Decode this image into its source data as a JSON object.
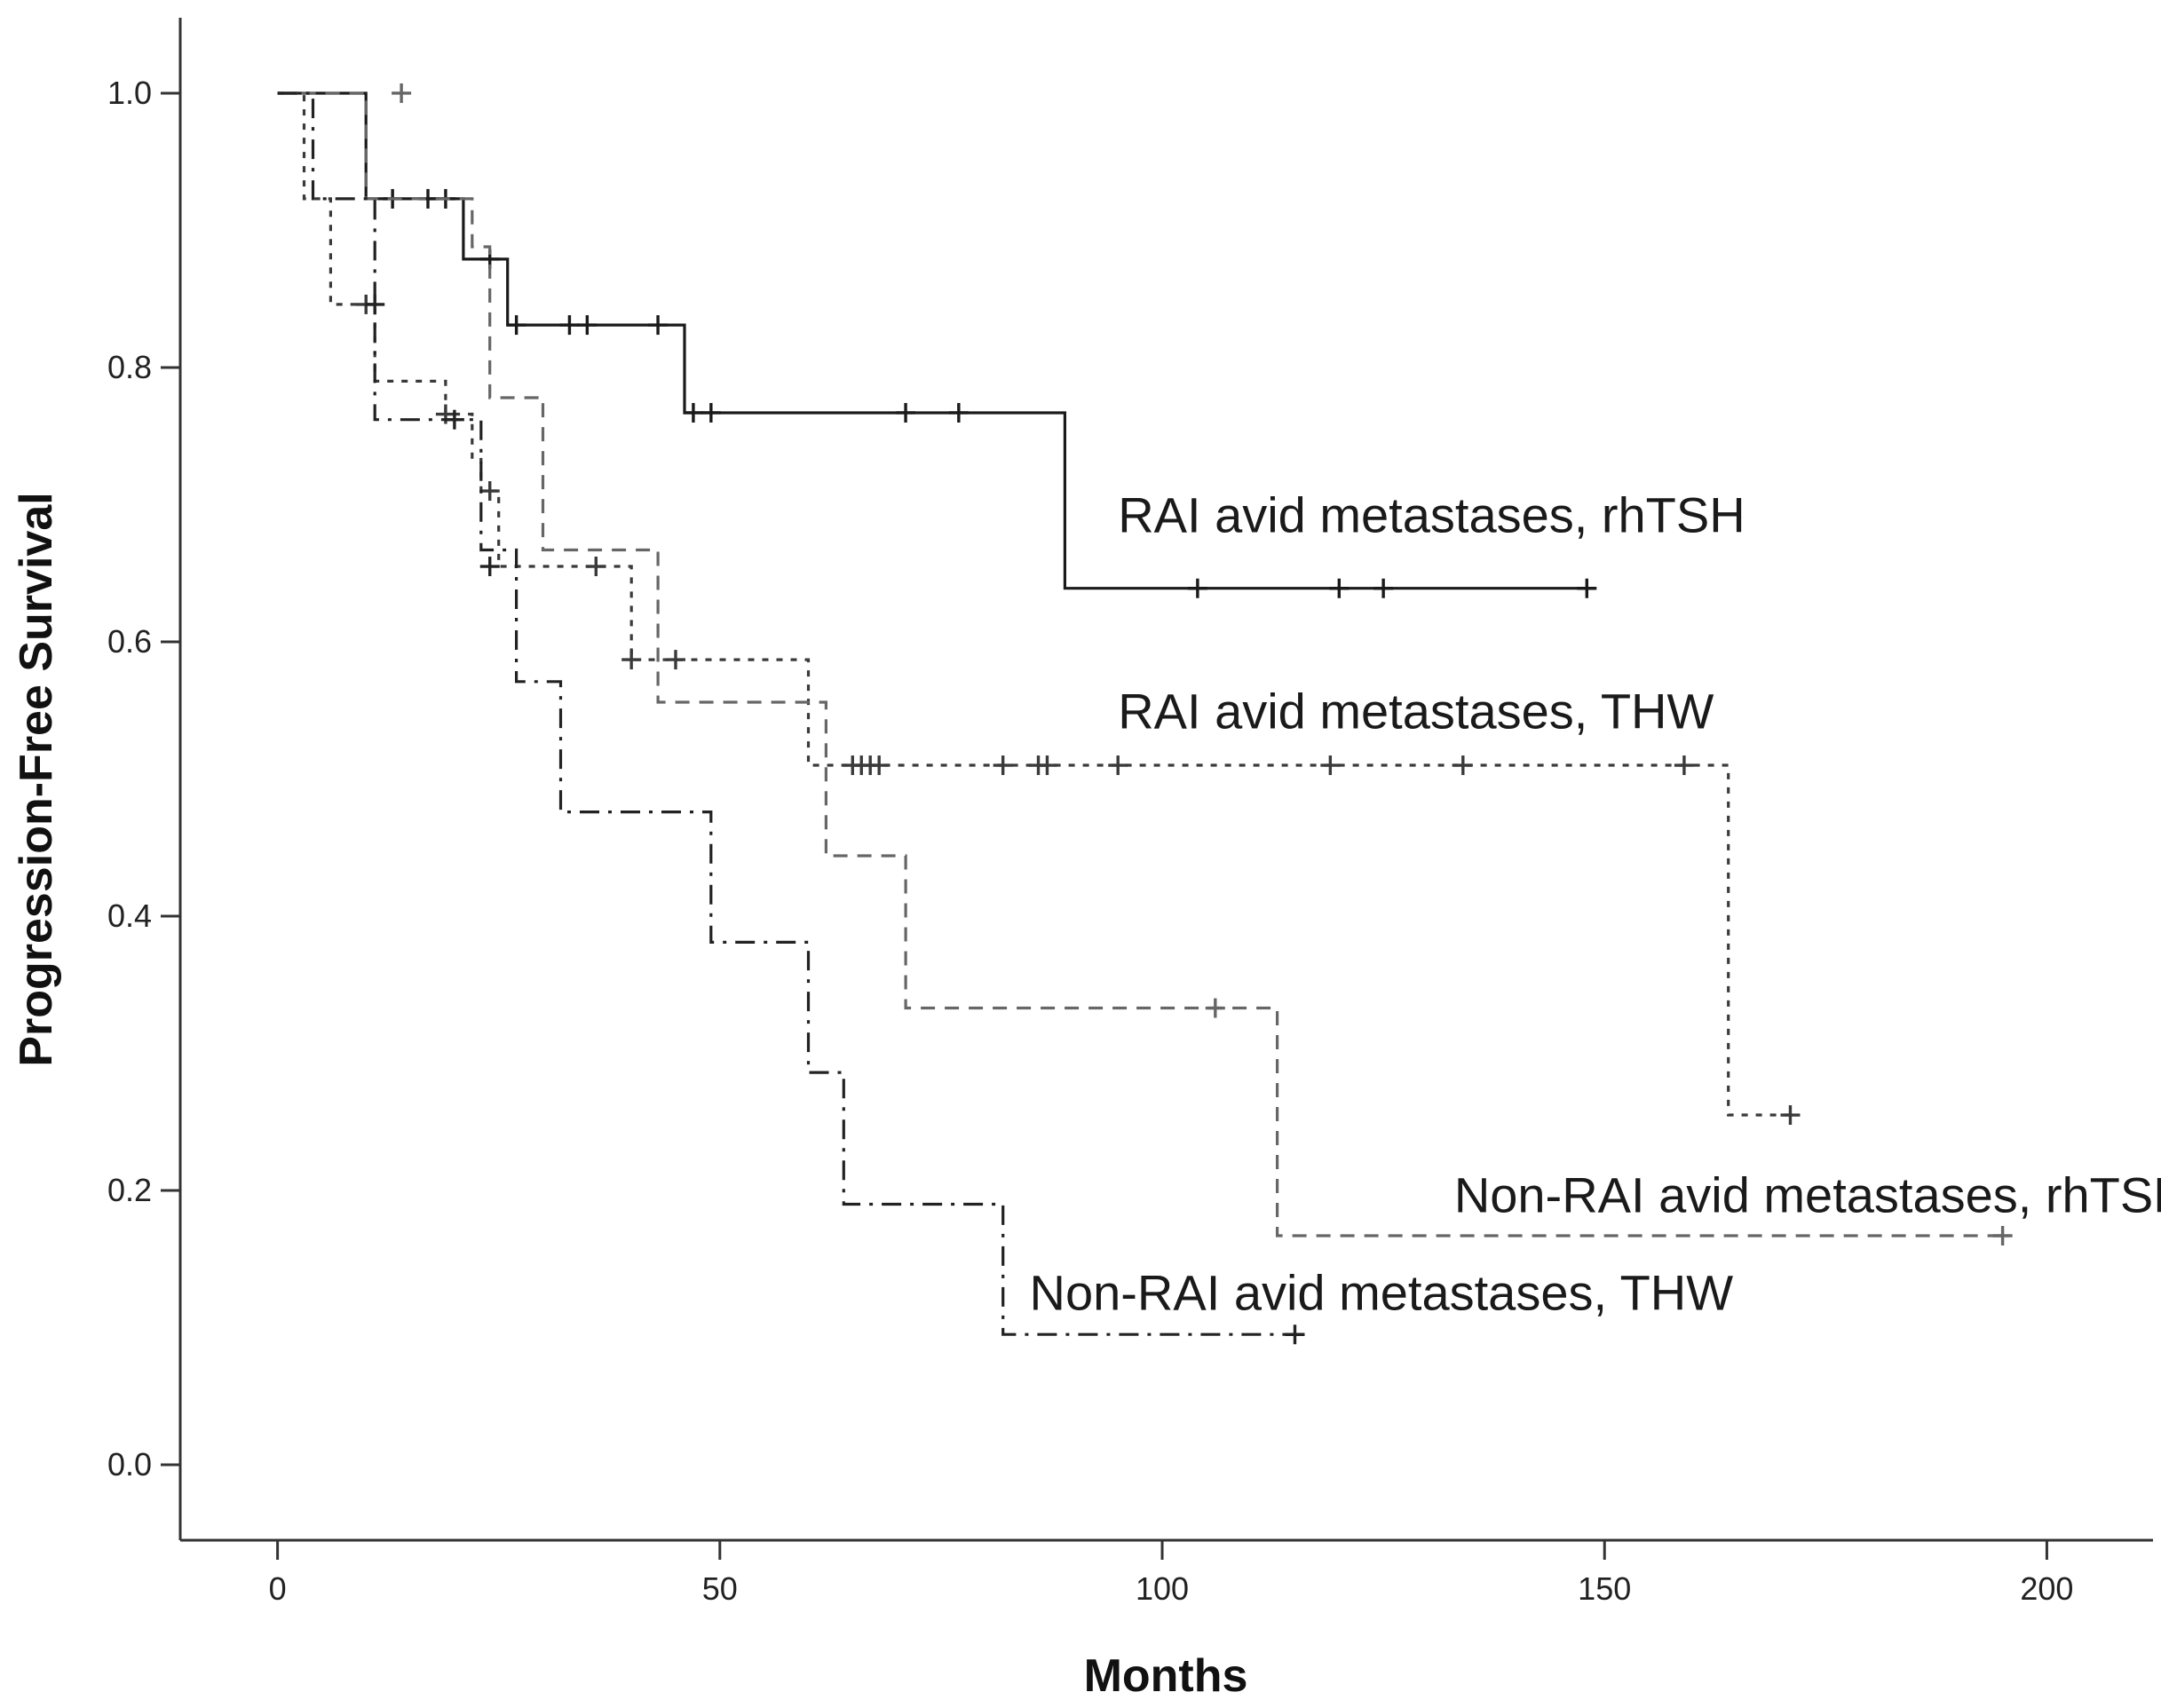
{
  "chart_data": {
    "type": "line",
    "subtype": "kaplan-meier step curve",
    "title": "",
    "xlabel": "Months",
    "ylabel": "Progression-Free Survival",
    "xlim": [
      -11,
      212
    ],
    "ylim": [
      -0.055,
      1.055
    ],
    "x_ticks": [
      0,
      50,
      100,
      150,
      200
    ],
    "x_tick_labels": [
      "0",
      "50",
      "100",
      "150",
      "200"
    ],
    "y_ticks": [
      0.0,
      0.2,
      0.4,
      0.6,
      0.8,
      1.0
    ],
    "y_tick_labels": [
      "0.0",
      "0.2",
      "0.4",
      "0.6",
      "0.8",
      "1.0"
    ],
    "grid": false,
    "legend": "labels placed next to curves",
    "series": [
      {
        "name": "RAI avid metastases, rhTSH",
        "line_style": "solid",
        "color": "#1a1a1a",
        "label_anchor": [
          95,
          0.68
        ],
        "steps": [
          [
            0,
            1.0
          ],
          [
            10,
            0.923
          ],
          [
            21,
            0.879
          ],
          [
            26,
            0.831
          ],
          [
            46,
            0.767
          ],
          [
            89,
            0.639
          ],
          [
            148,
            0.639
          ]
        ],
        "censored": [
          [
            13,
            0.923
          ],
          [
            17,
            0.923
          ],
          [
            19,
            0.923
          ],
          [
            24,
            0.879
          ],
          [
            27,
            0.831
          ],
          [
            33,
            0.831
          ],
          [
            35,
            0.831
          ],
          [
            43,
            0.831
          ],
          [
            47,
            0.767
          ],
          [
            49,
            0.767
          ],
          [
            71,
            0.767
          ],
          [
            77,
            0.767
          ],
          [
            104,
            0.639
          ],
          [
            120,
            0.639
          ],
          [
            125,
            0.639
          ],
          [
            148,
            0.639
          ]
        ]
      },
      {
        "name": "RAI avid metastases, THW",
        "line_style": "dotted",
        "color": "#3a3a3a",
        "label_anchor": [
          95,
          0.537
        ],
        "steps": [
          [
            0,
            1.0
          ],
          [
            3,
            0.923
          ],
          [
            6,
            0.846
          ],
          [
            11,
            0.79
          ],
          [
            19,
            0.766
          ],
          [
            22,
            0.733
          ],
          [
            23,
            0.71
          ],
          [
            25,
            0.655
          ],
          [
            37,
            0.655
          ],
          [
            40,
            0.587
          ],
          [
            60,
            0.51
          ],
          [
            164,
            0.255
          ],
          [
            171,
            0.255
          ]
        ],
        "censored": [
          [
            10,
            0.846
          ],
          [
            19,
            0.766
          ],
          [
            24,
            0.71
          ],
          [
            36,
            0.655
          ],
          [
            40,
            0.587
          ],
          [
            45,
            0.587
          ],
          [
            65,
            0.51
          ],
          [
            66,
            0.51
          ],
          [
            67,
            0.51
          ],
          [
            68,
            0.51
          ],
          [
            82,
            0.51
          ],
          [
            86,
            0.51
          ],
          [
            87,
            0.51
          ],
          [
            95,
            0.51
          ],
          [
            119,
            0.51
          ],
          [
            134,
            0.51
          ],
          [
            159,
            0.51
          ],
          [
            171,
            0.255
          ]
        ]
      },
      {
        "name": "Non-RAI avid metastases, rhTSH",
        "line_style": "dashed",
        "color": "#666666",
        "label_anchor": [
          133,
          0.184
        ],
        "steps": [
          [
            0,
            1.0
          ],
          [
            10,
            0.923
          ],
          [
            22,
            0.888
          ],
          [
            24,
            0.778
          ],
          [
            30,
            0.667
          ],
          [
            43,
            0.556
          ],
          [
            62,
            0.444
          ],
          [
            71,
            0.333
          ],
          [
            113,
            0.167
          ],
          [
            195,
            0.167
          ]
        ],
        "censored": [
          [
            14,
            1.0
          ],
          [
            106,
            0.333
          ],
          [
            195,
            0.167
          ]
        ]
      },
      {
        "name": "Non-RAI avid metastases, THW",
        "line_style": "dash-dot",
        "color": "#222222",
        "label_anchor": [
          85,
          0.113
        ],
        "steps": [
          [
            0,
            1.0
          ],
          [
            4,
            0.923
          ],
          [
            11,
            0.762
          ],
          [
            23,
            0.667
          ],
          [
            27,
            0.571
          ],
          [
            32,
            0.476
          ],
          [
            49,
            0.381
          ],
          [
            60,
            0.286
          ],
          [
            64,
            0.19
          ],
          [
            82,
            0.095
          ],
          [
            115,
            0.095
          ]
        ],
        "censored": [
          [
            11,
            0.846
          ],
          [
            20,
            0.762
          ],
          [
            24,
            0.655
          ],
          [
            115,
            0.095
          ]
        ]
      }
    ]
  }
}
